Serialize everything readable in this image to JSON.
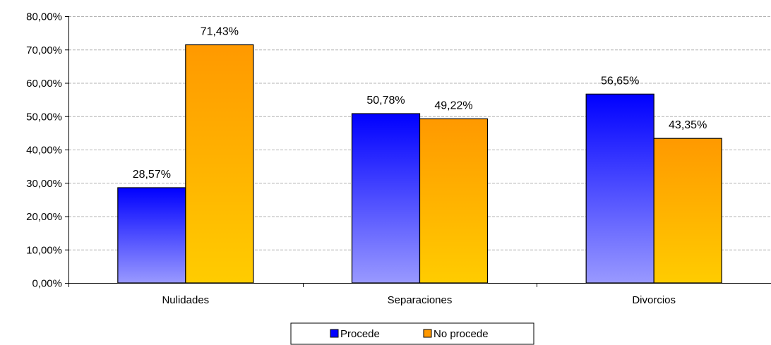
{
  "chart_data": {
    "type": "bar",
    "title": "",
    "xlabel": "",
    "ylabel": "",
    "categories": [
      "Nulidades",
      "Separaciones",
      "Divorcios"
    ],
    "series": [
      {
        "name": "Procede",
        "values": [
          28.57,
          50.78,
          56.65
        ],
        "labels": [
          "28,57%",
          "50,78%",
          "56,65%"
        ],
        "gradient": [
          "#0000ff",
          "#9999ff"
        ]
      },
      {
        "name": "No procede",
        "values": [
          71.43,
          49.22,
          43.35
        ],
        "labels": [
          "71,43%",
          "49,22%",
          "43,35%"
        ],
        "gradient": [
          "#ff9900",
          "#ffcc00"
        ]
      }
    ],
    "ylim": [
      0,
      80
    ],
    "yticks": [
      0,
      10,
      20,
      30,
      40,
      50,
      60,
      70,
      80
    ],
    "ytick_labels": [
      "0,00%",
      "10,00%",
      "20,00%",
      "30,00%",
      "40,00%",
      "50,00%",
      "60,00%",
      "70,00%",
      "80,00%"
    ],
    "grid": true,
    "grid_color": "#b3b3b3",
    "legend_position": "bottom-center"
  }
}
